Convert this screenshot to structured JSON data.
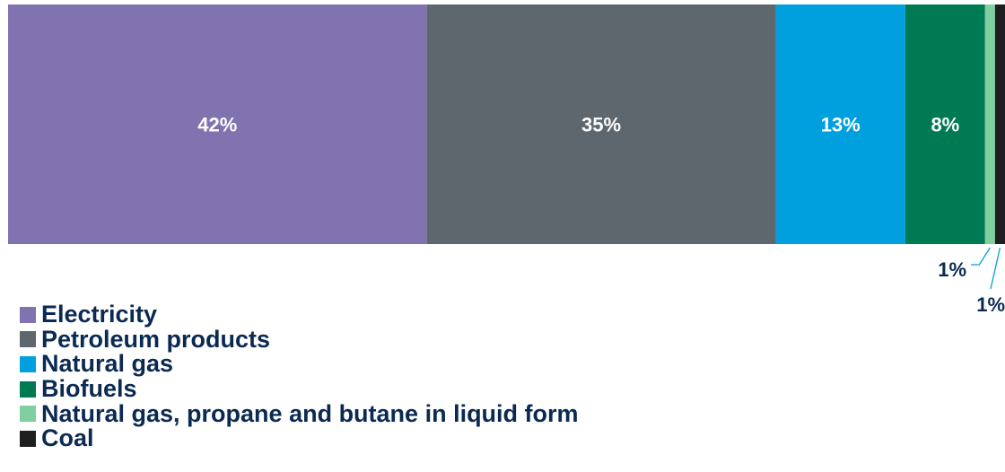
{
  "chart_data": {
    "type": "bar",
    "orientation": "horizontal",
    "stacked": true,
    "unit": "%",
    "grid": false,
    "legend_position": "bottom-left",
    "series": [
      {
        "name": "Electricity",
        "value": 42,
        "label": "42%",
        "color": "#8073b0"
      },
      {
        "name": "Petroleum products",
        "value": 35,
        "label": "35%",
        "color": "#5e676e"
      },
      {
        "name": "Natural gas",
        "value": 13,
        "label": "13%",
        "color": "#00a0df"
      },
      {
        "name": "Biofuels",
        "value": 8,
        "label": "8%",
        "color": "#007a53"
      },
      {
        "name": "Natural gas, propane and butane in liquid form",
        "value": 1,
        "label": "1%",
        "color": "#7fcfa0"
      },
      {
        "name": "Coal",
        "value": 1,
        "label": "1%",
        "color": "#1e1e1e"
      }
    ]
  },
  "colors": {
    "inside_label_text": "#ffffff",
    "outside_label_text": "#0b2a52",
    "leader_line": "#00a0df",
    "legend_text": "#0b2a52"
  }
}
